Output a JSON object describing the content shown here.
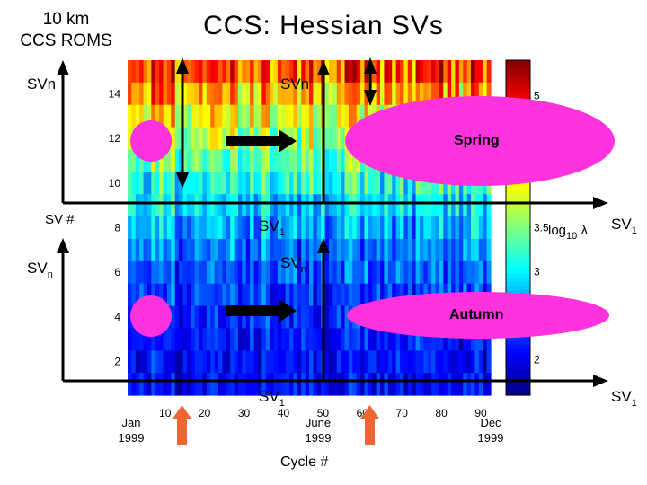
{
  "header": {
    "subtitle_line1": "10 km",
    "subtitle_line2": "CCS ROMS",
    "title": "CCS: Hessian SVs"
  },
  "annotations": {
    "sv_n_upper_left": "SVn",
    "sv_n_upper_center": "SVn",
    "sv_axis_label": "SV #",
    "sv_1_mid_center": "SV1",
    "sv_n_lower_left": "SVn",
    "sv_n_lower_center": "SVn",
    "sv_1_bottom_center": "SV1",
    "sv_1_right_upper": "SV1",
    "sv_1_right_lower": "SV1",
    "spring_label": "Spring",
    "autumn_label": "Autumn",
    "colorbar_label": "log10 λ"
  },
  "months": [
    {
      "name": "Jan",
      "year": "1999"
    },
    {
      "name": "June",
      "year": "1999"
    },
    {
      "name": "Dec",
      "year": "1999"
    }
  ],
  "colors": {
    "magenta": "#ff33dd",
    "arrow_orange": "#ee6633",
    "axis_black": "#000000"
  },
  "chart_data": {
    "type": "heatmap",
    "title": "",
    "xlabel": "Cycle #",
    "ylabel": "",
    "x_ticks": [
      10,
      20,
      30,
      40,
      50,
      60,
      70,
      80,
      90
    ],
    "x_range": [
      1,
      92
    ],
    "y_ticks": [
      2,
      4,
      6,
      8,
      10,
      12,
      14
    ],
    "y_range": [
      1,
      15
    ],
    "colorbar": {
      "tick_labels": [
        "2",
        "3",
        "3.5",
        "5"
      ],
      "tick_values": [
        2,
        3,
        3.5,
        5
      ],
      "range": [
        1.6,
        5.4
      ],
      "colormap": "jet"
    },
    "pattern": "log10 eigenvalue increases with SV index; top rows (high SV #) reach ~4-5.5 (red/yellow), rows 1-8 mostly blue (~2-2.8); vertical streaks vary by cycle"
  }
}
